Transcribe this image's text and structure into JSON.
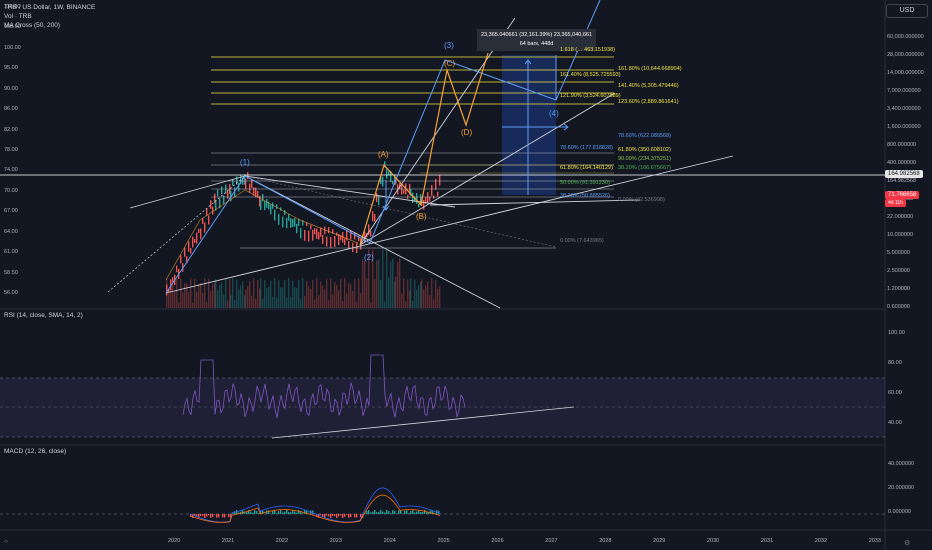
{
  "header": {
    "symbol": "TRB / US Dollar, 1W, BINANCE",
    "volume": "Vol · TRB",
    "ma": "MA Cross (50, 200)",
    "currency_button": "USD"
  },
  "left_axis": [
    "116.00",
    "108.00",
    "100.00",
    "95.00",
    "90.00",
    "86.00",
    "82.00",
    "78.00",
    "74.00",
    "70.00",
    "67.00",
    "64.00",
    "61.00",
    "58.50",
    "56.00"
  ],
  "right_axis": [
    "60,000.000000",
    "28,000.000000",
    "14,000.000000",
    "7,000.000000",
    "3,400.000000",
    "1,600.000000",
    "800.000000",
    "400.000000",
    "164.982568",
    "71.766658",
    "22.000000",
    "10.000000",
    "5.000000",
    "2.500000",
    "1.200000",
    "0.600000"
  ],
  "price_badges": {
    "last_price": "164.982568",
    "current_price": "71.766658",
    "countdown": "4d 11h"
  },
  "measure": {
    "line1": "23,365.040661 (32,161.39%) 23,365,040,661",
    "line2": "64 bars, 448d"
  },
  "fib_yellow": [
    "1.618 (… 463.151938)",
    "161.80% (10,644.668904)",
    "161.40% (8,525.725593)",
    "141.40% (5,305.479446)",
    "121.90% (3,524.607889)",
    "123.60% (2,889.861641)"
  ],
  "fib_blue": [
    "78.60% (622.080568)",
    "78.60% (177.818828)",
    "61.80% (350.608102)",
    "90.00% (234.375251)",
    "61.80% (164.140129)",
    "38.20% (166.675667)",
    "50.00% (91.391230)",
    "38.20% (50.885526)",
    "0.00% (42.536998)",
    "0.00% (7.643965)"
  ],
  "waves": {
    "w1": "(1)",
    "w2": "(2)",
    "w3": "(3)",
    "w4": "(4)",
    "wA": "(A)",
    "wB": "(B)",
    "wC": "(C)",
    "wD": "(D)"
  },
  "rsi": {
    "label": "RSI (14, close, SMA, 14, 2)",
    "axis": [
      "100.00",
      "80.00",
      "60.00",
      "40.00"
    ]
  },
  "macd": {
    "label": "MACD (12, 26, close)",
    "axis": [
      "40.000000",
      "20.000000",
      "0.000000"
    ]
  },
  "time_axis": [
    "2020",
    "2021",
    "2022",
    "2023",
    "2024",
    "2025",
    "2026",
    "2027",
    "2028",
    "2029",
    "2030",
    "2031",
    "2032",
    "2033"
  ],
  "colors": {
    "background": "#131722",
    "fib_yellow": "#f5e642",
    "fib_blue": "#5b9cf6",
    "wave_orange": "#f7a035",
    "rsi_line": "#7e57c2",
    "macd_line": "#2962ff",
    "signal_line": "#ff6d00",
    "badge_red": "#f23645"
  }
}
